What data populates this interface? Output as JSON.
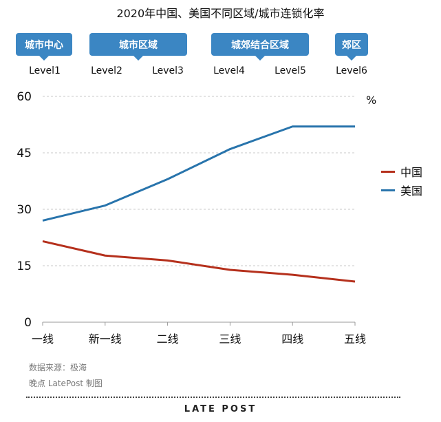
{
  "title": "2020年中国、美国不同区域/城市连锁化率",
  "zones": [
    {
      "label": "城市中心"
    },
    {
      "label": "城市区域"
    },
    {
      "label": "城郊结合区域"
    },
    {
      "label": "郊区"
    }
  ],
  "levels": [
    "Level1",
    "Level2",
    "Level3",
    "Level4",
    "Level5",
    "Level6"
  ],
  "colors": {
    "china": "#b5301c",
    "usa": "#2874ac",
    "badge": "#3b86c3"
  },
  "chart_data": {
    "type": "line",
    "categories": [
      "一线",
      "新一线",
      "二线",
      "三线",
      "四线",
      "五线"
    ],
    "series": [
      {
        "name": "中国",
        "values": [
          21.5,
          17.7,
          16.4,
          13.9,
          12.6,
          10.8
        ]
      },
      {
        "name": "美国",
        "values": [
          27,
          31,
          38,
          46,
          52,
          52
        ]
      }
    ],
    "ylim": [
      0,
      60
    ],
    "yticks": [
      0,
      15,
      30,
      45,
      60
    ],
    "yunit": "%",
    "legend": "right"
  },
  "source_lines": [
    "数据来源：极海",
    "晚点 LatePost 制图"
  ],
  "brand": "LATE POST"
}
